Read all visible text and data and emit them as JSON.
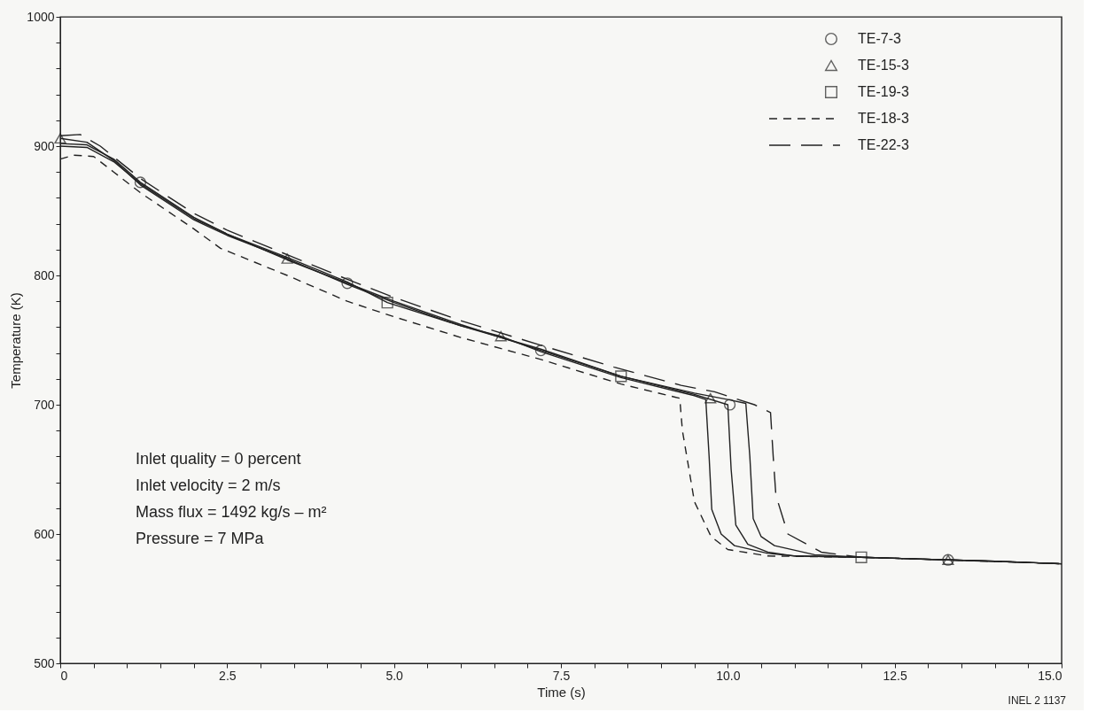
{
  "chart_data": {
    "type": "line",
    "xlabel": "Time (s)",
    "ylabel": "Temperature (K)",
    "xlim": [
      0,
      15
    ],
    "ylim": [
      500,
      1000
    ],
    "xticks": [
      0,
      {
        "value": 0.5,
        "label": null
      },
      {
        "value": 1,
        "label": null
      },
      {
        "value": 1.5,
        "label": null
      },
      {
        "value": 2,
        "label": null
      },
      2.5,
      {
        "value": 3,
        "label": null
      },
      {
        "value": 3.5,
        "label": null
      },
      {
        "value": 4,
        "label": null
      },
      {
        "value": 4.5,
        "label": null
      },
      {
        "value": 5,
        "label": "5.0"
      },
      {
        "value": 5.5,
        "label": null
      },
      {
        "value": 6,
        "label": null
      },
      {
        "value": 6.5,
        "label": null
      },
      {
        "value": 7,
        "label": null
      },
      7.5,
      {
        "value": 8,
        "label": null
      },
      {
        "value": 8.5,
        "label": null
      },
      {
        "value": 9,
        "label": null
      },
      {
        "value": 9.5,
        "label": null
      },
      {
        "value": 10,
        "label": "10.0"
      },
      {
        "value": 10.5,
        "label": null
      },
      {
        "value": 11,
        "label": null
      },
      {
        "value": 11.5,
        "label": null
      },
      {
        "value": 12,
        "label": null
      },
      12.5,
      {
        "value": 13,
        "label": null
      },
      {
        "value": 13.5,
        "label": null
      },
      {
        "value": 14,
        "label": null
      },
      {
        "value": 14.5,
        "label": null
      },
      {
        "value": 15,
        "label": "15.0"
      }
    ],
    "yticks": [
      500,
      {
        "value": 520,
        "label": null
      },
      {
        "value": 540,
        "label": null
      },
      {
        "value": 560,
        "label": null
      },
      {
        "value": 580,
        "label": null
      },
      600,
      {
        "value": 620,
        "label": null
      },
      {
        "value": 640,
        "label": null
      },
      {
        "value": 660,
        "label": null
      },
      {
        "value": 680,
        "label": null
      },
      700,
      {
        "value": 720,
        "label": null
      },
      {
        "value": 740,
        "label": null
      },
      {
        "value": 760,
        "label": null
      },
      {
        "value": 780,
        "label": null
      },
      800,
      {
        "value": 820,
        "label": null
      },
      {
        "value": 840,
        "label": null
      },
      {
        "value": 860,
        "label": null
      },
      {
        "value": 880,
        "label": null
      },
      900,
      {
        "value": 920,
        "label": null
      },
      {
        "value": 940,
        "label": null
      },
      {
        "value": 960,
        "label": null
      },
      {
        "value": 980,
        "label": null
      },
      1000
    ],
    "grid": false,
    "legend": "top right",
    "series": [
      {
        "color": "#222222",
        "line_style": "solid",
        "x": [
          0,
          0.4,
          0.8,
          1.2,
          2,
          2.5,
          3.4,
          4.3,
          5,
          6,
          7.2,
          8.4,
          9.5,
          10.0,
          10.05,
          10.12,
          10.3,
          10.6,
          11,
          12,
          13.3,
          14,
          15
        ],
        "values": [
          902,
          901,
          890,
          872,
          845,
          832,
          812,
          794,
          780,
          762,
          742,
          722,
          708,
          700,
          650,
          607,
          592,
          586,
          583,
          582,
          580,
          579,
          577
        ]
      },
      {
        "color": "#222222",
        "line_style": "solid",
        "x": [
          0,
          0.4,
          0.8,
          1.2,
          2,
          2.5,
          3.4,
          4.3,
          5,
          6,
          6.6,
          7.2,
          8.4,
          9.5,
          9.67,
          9.72,
          9.76,
          9.9,
          10.1,
          10.6,
          11,
          12,
          13.3,
          14,
          15
        ],
        "values": [
          906,
          903,
          889,
          870,
          843,
          831,
          813,
          793,
          779,
          761,
          753,
          741,
          721,
          707,
          704,
          660,
          619,
          600,
          591,
          585,
          583,
          582,
          580,
          579,
          577
        ]
      },
      {
        "color": "#222222",
        "line_style": "solid",
        "x": [
          0,
          0.4,
          0.8,
          1.2,
          2,
          2.5,
          3.4,
          4.3,
          4.9,
          6,
          7.2,
          8.4,
          9.5,
          10.0,
          10.27,
          10.33,
          10.38,
          10.5,
          10.7,
          11.3,
          12,
          13.3,
          14,
          15
        ],
        "values": [
          900,
          899,
          888,
          871,
          844,
          832,
          814,
          795,
          779,
          761,
          743,
          722,
          709,
          704,
          701,
          660,
          612,
          598,
          591,
          584,
          582,
          580,
          579,
          577
        ]
      },
      {
        "name": "TE-18-3",
        "color": "#222222",
        "line_style": "dashed",
        "x": [
          0,
          0.2,
          0.5,
          0.8,
          1.2,
          2,
          2.4,
          3.4,
          4.3,
          5,
          6,
          7.2,
          8.4,
          9.28,
          9.32,
          9.5,
          9.75,
          10.0,
          10.6,
          12,
          13.3,
          15
        ],
        "values": [
          890,
          893,
          892,
          880,
          864,
          836,
          821,
          800,
          780,
          768,
          752,
          735,
          716,
          705,
          680,
          625,
          598,
          588,
          583,
          582,
          580,
          577
        ]
      },
      {
        "name": "TE-22-3",
        "color": "#222222",
        "line_style": "dashed",
        "x": [
          0,
          0.3,
          0.6,
          1.2,
          2,
          2.5,
          3.4,
          4.3,
          5,
          6,
          7.2,
          8.3,
          9.3,
          9.8,
          10.4,
          10.64,
          10.68,
          10.72,
          10.9,
          11.4,
          12,
          13.3,
          15
        ],
        "values": [
          908,
          909,
          900,
          875,
          848,
          835,
          816,
          797,
          783,
          765,
          746,
          729,
          715,
          710,
          700,
          694,
          660,
          630,
          600,
          586,
          582,
          580,
          577
        ]
      },
      {
        "name": "TE-7-3",
        "type": "scatter",
        "color": "#222222",
        "marker": "circle",
        "x": [
          1.2,
          4.3,
          7.2,
          10.03,
          13.3
        ],
        "values": [
          872,
          794,
          742,
          700,
          580
        ]
      },
      {
        "name": "TE-15-3",
        "type": "scatter",
        "color": "#222222",
        "marker": "triangle",
        "x": [
          0,
          3.4,
          6.6,
          9.74,
          13.3
        ],
        "values": [
          906,
          813,
          753,
          705,
          580
        ]
      },
      {
        "name": "TE-19-3",
        "type": "scatter",
        "color": "#222222",
        "marker": "square",
        "x": [
          4.9,
          8.4,
          12.0
        ],
        "values": [
          779,
          722,
          582
        ]
      }
    ],
    "annotations": [
      "Inlet quality = 0 percent",
      "Inlet velocity = 2 m/s",
      "Mass flux = 1492 kg/s – m²",
      "Pressure = 7 MPa",
      "INEL 2 1137"
    ]
  }
}
